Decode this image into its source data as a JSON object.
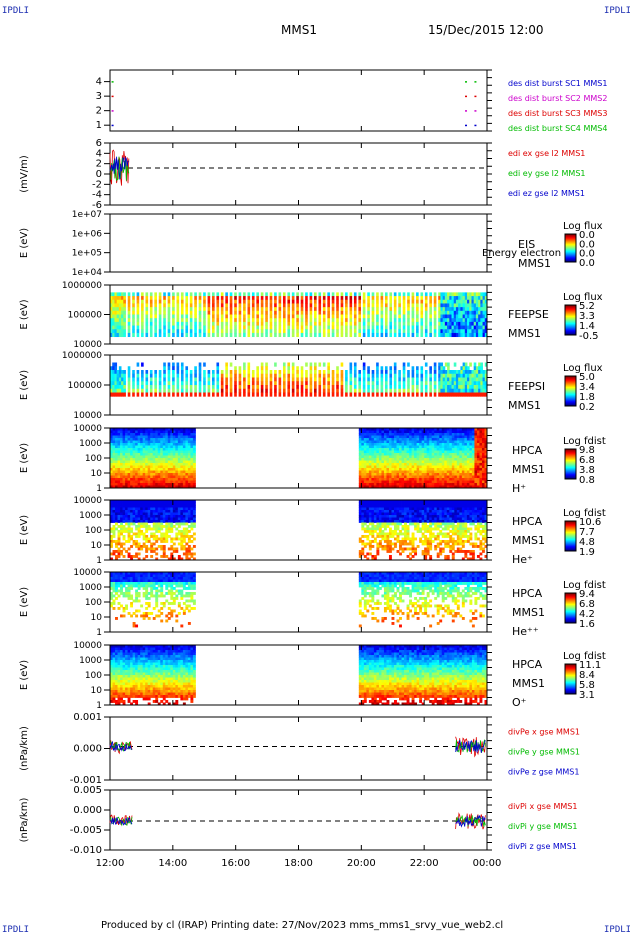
{
  "corners": {
    "tl": "IPDLI",
    "tr": "IPDLI",
    "bl": "IPDLI",
    "br": "IPDLI"
  },
  "header": {
    "spacecraft": "MMS1",
    "datetime": "15/Dec/2015 12:00"
  },
  "footer": {
    "text": "Produced by cl (IRAP)   Printing date: 27/Nov/2023   mms_mms1_srvy_vue_web2.cl"
  },
  "colors": {
    "c1": "#0000cc",
    "c2": "#cc00cc",
    "c3": "#dd0000",
    "c4": "#00bb00",
    "red": "#dd0000",
    "green": "#00bb00",
    "blue": "#0000cc"
  },
  "chart_data": [
    {
      "type": "scatter",
      "ylabel": "",
      "yticks": [
        "1",
        "2",
        "3",
        "4"
      ],
      "legend": [
        "des dist burst SC1 MMS1",
        "des dist burst SC2 MMS2",
        "des dist burst SC3 MMS3",
        "des dist burst SC4 MMS4"
      ]
    },
    {
      "type": "line",
      "ylabel": "(mV/m)",
      "yticks": [
        "6",
        "4",
        "2",
        "0",
        "-2",
        "-4",
        "-6"
      ],
      "legend": [
        "edi ex gse l2 MMS1",
        "edi ey gse l2 MMS1",
        "edi ez gse l2 MMS1"
      ]
    },
    {
      "type": "heatmap",
      "ylabel": "E (eV)",
      "yticks": [
        "1e+07",
        "1e+06",
        "1e+05",
        "1e+04"
      ],
      "instrument": [
        "EIS",
        "MMS1"
      ],
      "overlay": "Energy electron to",
      "cbar_title": "Log flux",
      "cbar_ticks": [
        "0.0",
        "0.0",
        "0.0",
        "0.0"
      ]
    },
    {
      "type": "heatmap",
      "ylabel": "E (eV)",
      "yticks": [
        "1000000",
        "100000",
        "10000"
      ],
      "instrument": [
        "FEEPSE",
        "MMS1"
      ],
      "cbar_title": "Log flux",
      "cbar_ticks": [
        "5.2",
        "3.3",
        "1.4",
        "-0.5"
      ]
    },
    {
      "type": "heatmap",
      "ylabel": "E (eV)",
      "yticks": [
        "1000000",
        "100000",
        "10000"
      ],
      "instrument": [
        "FEEPSI",
        "MMS1"
      ],
      "cbar_title": "Log flux",
      "cbar_ticks": [
        "5.0",
        "3.4",
        "1.8",
        "0.2"
      ]
    },
    {
      "type": "heatmap",
      "ylabel": "E (eV)",
      "yticks": [
        "10000",
        "1000",
        "100",
        "10",
        "1"
      ],
      "instrument": [
        "HPCA",
        "MMS1",
        "H⁺"
      ],
      "cbar_title": "Log fdist",
      "cbar_ticks": [
        "9.8",
        "6.8",
        "3.8",
        "0.8"
      ]
    },
    {
      "type": "heatmap",
      "ylabel": "E (eV)",
      "yticks": [
        "10000",
        "1000",
        "100",
        "10",
        "1"
      ],
      "instrument": [
        "HPCA",
        "MMS1",
        "He⁺"
      ],
      "cbar_title": "Log fdist",
      "cbar_ticks": [
        "10.6",
        "7.7",
        "4.8",
        "1.9"
      ]
    },
    {
      "type": "heatmap",
      "ylabel": "E (eV)",
      "yticks": [
        "10000",
        "1000",
        "100",
        "10",
        "1"
      ],
      "instrument": [
        "HPCA",
        "MMS1",
        "He⁺⁺"
      ],
      "cbar_title": "Log fdist",
      "cbar_ticks": [
        "9.4",
        "6.8",
        "4.2",
        "1.6"
      ]
    },
    {
      "type": "heatmap",
      "ylabel": "E (eV)",
      "yticks": [
        "10000",
        "1000",
        "100",
        "10",
        "1"
      ],
      "instrument": [
        "HPCA",
        "MMS1",
        "O⁺"
      ],
      "cbar_title": "Log fdist",
      "cbar_ticks": [
        "11.1",
        "8.4",
        "5.8",
        "3.1"
      ]
    },
    {
      "type": "line",
      "ylabel": "(nPa/km)",
      "yticks": [
        "0.001",
        "0.000",
        "-0.001"
      ],
      "legend": [
        "divPe x gse MMS1",
        "divPe y gse MMS1",
        "divPe z gse MMS1"
      ]
    },
    {
      "type": "line",
      "ylabel": "(nPa/km)",
      "yticks": [
        "0.005",
        "0.000",
        "-0.005",
        "-0.010"
      ],
      "legend": [
        "divPi x gse MMS1",
        "divPi y gse MMS1",
        "divPi z gse MMS1"
      ]
    }
  ],
  "xaxis": {
    "ticks": [
      "12:00",
      "14:00",
      "16:00",
      "18:00",
      "20:00",
      "22:00",
      "00:00"
    ],
    "range_hours": [
      12,
      24
    ]
  }
}
